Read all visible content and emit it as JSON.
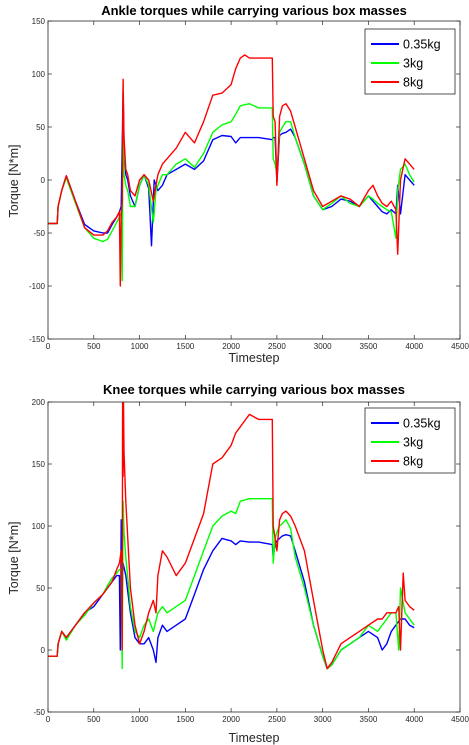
{
  "colors": {
    "0.35kg": "#0000ff",
    "3kg": "#00ff00",
    "8kg": "#ff0000"
  },
  "chart_data": [
    {
      "type": "line",
      "title": "Ankle torques while carrying various box masses",
      "xlabel": "Timestep",
      "ylabel": "Torque [N*m]",
      "xlim": [
        0,
        4500
      ],
      "ylim": [
        -150,
        150
      ],
      "xticks": [
        0,
        500,
        1000,
        1500,
        2000,
        2500,
        3000,
        3500,
        4000,
        4500
      ],
      "yticks": [
        -150,
        -100,
        -50,
        0,
        50,
        100,
        150
      ],
      "legend": "top-right",
      "series": [
        {
          "name": "0.35kg",
          "x": [
            0,
            100,
            110,
            150,
            200,
            300,
            400,
            500,
            600,
            650,
            700,
            750,
            780,
            800,
            820,
            830,
            850,
            870,
            900,
            950,
            1000,
            1050,
            1100,
            1130,
            1160,
            1180,
            1200,
            1250,
            1300,
            1400,
            1500,
            1600,
            1700,
            1800,
            1900,
            2000,
            2050,
            2100,
            2200,
            2300,
            2450,
            2460,
            2480,
            2500,
            2530,
            2560,
            2600,
            2650,
            2700,
            2800,
            2900,
            3000,
            3100,
            3200,
            3300,
            3400,
            3500,
            3550,
            3600,
            3650,
            3700,
            3750,
            3800,
            3820,
            3850,
            3900,
            3950,
            4000
          ],
          "values": [
            -41,
            -41,
            -25,
            -10,
            4,
            -20,
            -42,
            -48,
            -50,
            -50,
            -42,
            -35,
            -30,
            -25,
            84,
            35,
            5,
            0,
            -15,
            -25,
            -5,
            5,
            -8,
            -62,
            0,
            -5,
            -10,
            -5,
            5,
            10,
            15,
            10,
            18,
            38,
            42,
            41,
            35,
            40,
            40,
            40,
            38,
            40,
            40,
            -2,
            42,
            44,
            45,
            48,
            40,
            15,
            -15,
            -28,
            -25,
            -18,
            -20,
            -25,
            -15,
            -20,
            -25,
            -30,
            -32,
            -28,
            -32,
            -5,
            -32,
            5,
            0,
            -5
          ]
        },
        {
          "name": "3kg",
          "x": [
            0,
            100,
            110,
            150,
            200,
            300,
            400,
            500,
            600,
            650,
            700,
            750,
            780,
            800,
            810,
            820,
            830,
            850,
            870,
            900,
            950,
            1000,
            1050,
            1100,
            1150,
            1180,
            1200,
            1250,
            1300,
            1400,
            1500,
            1600,
            1700,
            1800,
            1900,
            2000,
            2050,
            2100,
            2200,
            2300,
            2450,
            2460,
            2480,
            2500,
            2530,
            2560,
            2600,
            2650,
            2700,
            2800,
            2900,
            3000,
            3100,
            3200,
            3300,
            3400,
            3500,
            3550,
            3600,
            3650,
            3700,
            3750,
            3800,
            3820,
            3850,
            3900,
            3950,
            4000
          ],
          "values": [
            -41,
            -41,
            -25,
            -10,
            2,
            -22,
            -45,
            -55,
            -58,
            -56,
            -48,
            -40,
            -35,
            -30,
            -95,
            60,
            5,
            -5,
            -10,
            -25,
            -25,
            -5,
            5,
            -5,
            -40,
            -10,
            -5,
            5,
            5,
            15,
            20,
            12,
            25,
            45,
            52,
            55,
            62,
            70,
            72,
            68,
            68,
            20,
            15,
            5,
            45,
            50,
            55,
            55,
            40,
            15,
            -15,
            -28,
            -22,
            -15,
            -22,
            -25,
            -15,
            -18,
            -22,
            -25,
            -28,
            -30,
            -55,
            -10,
            10,
            15,
            5,
            -2
          ]
        },
        {
          "name": "8kg",
          "x": [
            0,
            100,
            110,
            150,
            200,
            300,
            400,
            500,
            600,
            650,
            700,
            750,
            780,
            790,
            800,
            810,
            820,
            830,
            850,
            870,
            900,
            950,
            1000,
            1050,
            1100,
            1150,
            1180,
            1200,
            1250,
            1300,
            1400,
            1500,
            1600,
            1700,
            1800,
            1900,
            2000,
            2050,
            2100,
            2150,
            2200,
            2300,
            2450,
            2460,
            2480,
            2500,
            2530,
            2560,
            2600,
            2650,
            2700,
            2800,
            2900,
            3000,
            3100,
            3200,
            3300,
            3400,
            3500,
            3550,
            3600,
            3650,
            3700,
            3750,
            3800,
            3820,
            3850,
            3900,
            3950,
            4000
          ],
          "values": [
            -41,
            -41,
            -25,
            -10,
            4,
            -20,
            -45,
            -52,
            -52,
            -48,
            -40,
            -35,
            -30,
            -100,
            -35,
            -20,
            95,
            40,
            10,
            5,
            -10,
            -15,
            0,
            5,
            0,
            -20,
            -5,
            5,
            15,
            20,
            30,
            45,
            35,
            55,
            80,
            82,
            90,
            105,
            115,
            118,
            115,
            115,
            115,
            60,
            55,
            -5,
            60,
            70,
            72,
            65,
            50,
            20,
            -10,
            -25,
            -20,
            -15,
            -18,
            -25,
            -10,
            -5,
            -15,
            -22,
            -25,
            -20,
            -28,
            -70,
            0,
            20,
            15,
            10
          ]
        }
      ]
    },
    {
      "type": "line",
      "title": "Knee torques while carrying various box masses",
      "xlabel": "Timestep",
      "ylabel": "Torque [N*m]",
      "xlim": [
        0,
        4500
      ],
      "ylim": [
        -50,
        200
      ],
      "xticks": [
        0,
        500,
        1000,
        1500,
        2000,
        2500,
        3000,
        3500,
        4000,
        4500
      ],
      "yticks": [
        -50,
        0,
        50,
        100,
        150,
        200
      ],
      "legend": "top-right",
      "series": [
        {
          "name": "0.35kg",
          "x": [
            0,
            100,
            110,
            150,
            200,
            300,
            400,
            500,
            600,
            650,
            700,
            750,
            780,
            790,
            800,
            810,
            820,
            850,
            900,
            950,
            1000,
            1050,
            1100,
            1150,
            1180,
            1200,
            1250,
            1300,
            1400,
            1500,
            1600,
            1700,
            1800,
            1900,
            2000,
            2050,
            2100,
            2200,
            2300,
            2450,
            2460,
            2480,
            2500,
            2530,
            2560,
            2600,
            2650,
            2700,
            2800,
            2900,
            3000,
            3050,
            3100,
            3200,
            3300,
            3400,
            3500,
            3600,
            3650,
            3700,
            3750,
            3800,
            3850,
            3900,
            3950,
            4000
          ],
          "values": [
            -5,
            -5,
            5,
            15,
            10,
            20,
            30,
            35,
            45,
            50,
            55,
            60,
            60,
            0,
            105,
            45,
            70,
            60,
            30,
            10,
            5,
            5,
            10,
            0,
            -10,
            10,
            20,
            15,
            20,
            25,
            45,
            65,
            80,
            90,
            88,
            85,
            88,
            87,
            87,
            85,
            75,
            85,
            88,
            90,
            92,
            93,
            92,
            80,
            55,
            20,
            -5,
            -15,
            -12,
            0,
            5,
            10,
            15,
            10,
            0,
            5,
            15,
            20,
            25,
            25,
            20,
            18
          ]
        },
        {
          "name": "3kg",
          "x": [
            0,
            100,
            110,
            150,
            200,
            300,
            400,
            500,
            600,
            650,
            700,
            750,
            780,
            800,
            810,
            820,
            830,
            850,
            900,
            950,
            1000,
            1050,
            1100,
            1150,
            1200,
            1250,
            1300,
            1400,
            1500,
            1600,
            1700,
            1800,
            1900,
            2000,
            2050,
            2100,
            2200,
            2300,
            2450,
            2460,
            2480,
            2500,
            2530,
            2560,
            2600,
            2650,
            2700,
            2800,
            2900,
            3000,
            3050,
            3100,
            3200,
            3300,
            3400,
            3500,
            3600,
            3650,
            3700,
            3750,
            3800,
            3830,
            3850,
            3900,
            3950,
            4000
          ],
          "values": [
            -5,
            -5,
            5,
            15,
            8,
            20,
            28,
            38,
            45,
            52,
            58,
            62,
            65,
            65,
            -15,
            120,
            95,
            75,
            35,
            15,
            10,
            20,
            25,
            15,
            30,
            35,
            30,
            35,
            40,
            60,
            80,
            100,
            108,
            112,
            110,
            120,
            122,
            122,
            122,
            70,
            90,
            95,
            100,
            102,
            105,
            98,
            75,
            50,
            20,
            -5,
            -15,
            -12,
            0,
            5,
            10,
            20,
            15,
            20,
            25,
            30,
            30,
            0,
            50,
            30,
            25,
            20
          ]
        },
        {
          "name": "8kg",
          "x": [
            0,
            100,
            110,
            150,
            200,
            300,
            400,
            500,
            600,
            650,
            700,
            750,
            780,
            800,
            810,
            815,
            820,
            825,
            830,
            850,
            900,
            950,
            1000,
            1050,
            1100,
            1150,
            1180,
            1200,
            1250,
            1300,
            1400,
            1500,
            1600,
            1700,
            1800,
            1900,
            2000,
            2050,
            2100,
            2150,
            2200,
            2300,
            2450,
            2460,
            2480,
            2500,
            2530,
            2560,
            2600,
            2650,
            2700,
            2800,
            2900,
            3000,
            3050,
            3100,
            3200,
            3300,
            3400,
            3500,
            3600,
            3650,
            3700,
            3750,
            3800,
            3830,
            3850,
            3880,
            3900,
            3950,
            4000
          ],
          "values": [
            -5,
            -5,
            5,
            15,
            10,
            20,
            30,
            38,
            45,
            50,
            55,
            65,
            70,
            80,
            0,
            200,
            140,
            200,
            160,
            120,
            50,
            20,
            5,
            15,
            30,
            40,
            30,
            60,
            80,
            75,
            60,
            70,
            90,
            110,
            150,
            155,
            165,
            175,
            180,
            185,
            190,
            186,
            186,
            100,
            90,
            80,
            105,
            110,
            112,
            108,
            100,
            80,
            40,
            0,
            -15,
            -10,
            5,
            10,
            15,
            20,
            25,
            25,
            30,
            30,
            30,
            35,
            0,
            62,
            40,
            35,
            32
          ]
        }
      ]
    }
  ]
}
